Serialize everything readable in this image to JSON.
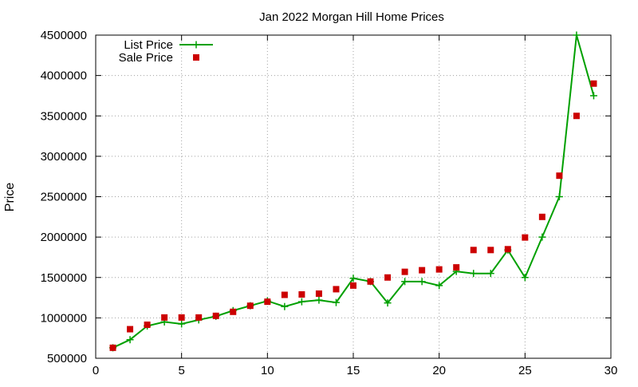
{
  "chart_data": {
    "type": "line",
    "title": "Jan 2022 Morgan Hill Home Prices",
    "xlabel": "",
    "ylabel": "Price",
    "xlim": [
      0,
      30
    ],
    "ylim": [
      500000,
      4500000
    ],
    "xticks": [
      0,
      5,
      10,
      15,
      20,
      25,
      30
    ],
    "yticks": [
      500000,
      1000000,
      1500000,
      2000000,
      2500000,
      3000000,
      3500000,
      4000000,
      4500000
    ],
    "grid": true,
    "legend_position": "top-left",
    "series": [
      {
        "name": "List Price",
        "style": "line-with-plus-markers",
        "color": "#00a000",
        "x": [
          1,
          2,
          3,
          4,
          5,
          6,
          7,
          8,
          9,
          10,
          11,
          12,
          13,
          14,
          15,
          16,
          17,
          18,
          19,
          20,
          21,
          22,
          23,
          24,
          25,
          26,
          27,
          28,
          29
        ],
        "values": [
          630000,
          730000,
          900000,
          950000,
          925000,
          975000,
          1020000,
          1090000,
          1150000,
          1210000,
          1140000,
          1200000,
          1220000,
          1190000,
          1490000,
          1450000,
          1185000,
          1450000,
          1450000,
          1400000,
          1575000,
          1550000,
          1550000,
          1840000,
          1500000,
          2000000,
          2500000,
          4500000,
          3750000
        ]
      },
      {
        "name": "Sale Price",
        "style": "square-markers",
        "color": "#cc0000",
        "x": [
          1,
          2,
          3,
          4,
          5,
          6,
          7,
          8,
          9,
          10,
          11,
          12,
          13,
          14,
          15,
          16,
          17,
          18,
          19,
          20,
          21,
          22,
          23,
          24,
          25,
          26,
          27,
          28,
          29
        ],
        "values": [
          630000,
          860000,
          915000,
          1005000,
          1005000,
          1005000,
          1025000,
          1075000,
          1150000,
          1200000,
          1285000,
          1290000,
          1300000,
          1355000,
          1400000,
          1450000,
          1500000,
          1570000,
          1590000,
          1600000,
          1625000,
          1840000,
          1840000,
          1850000,
          1995000,
          2250000,
          2760000,
          3500000,
          3900000
        ]
      }
    ]
  }
}
